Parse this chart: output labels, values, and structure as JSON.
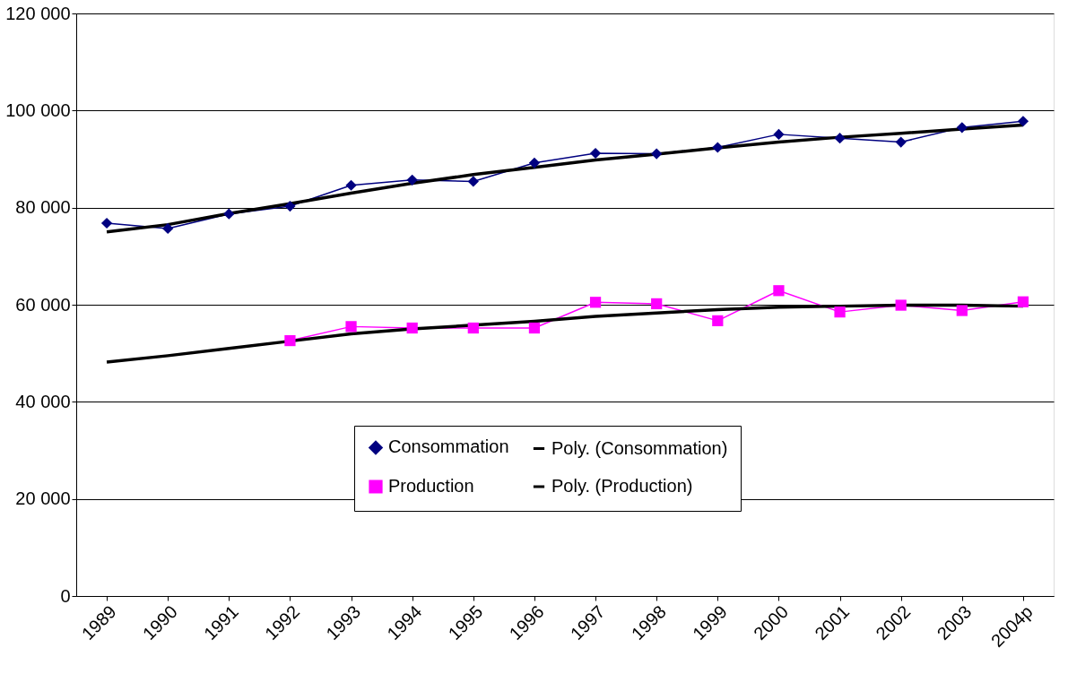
{
  "chart_data": {
    "type": "line",
    "categories": [
      "1989",
      "1990",
      "1991",
      "1992",
      "1993",
      "1994",
      "1995",
      "1996",
      "1997",
      "1998",
      "1999",
      "2000",
      "2001",
      "2002",
      "2003",
      "2004p"
    ],
    "series": [
      {
        "name": "Consommation",
        "color": "#000080",
        "marker": "diamond",
        "values": [
          76800,
          75700,
          78700,
          80300,
          84600,
          85700,
          85400,
          89200,
          91200,
          91100,
          92400,
          95100,
          94300,
          93500,
          96500,
          97800
        ]
      },
      {
        "name": "Production",
        "color": "#ff00ff",
        "marker": "square",
        "values": [
          null,
          null,
          null,
          52600,
          55500,
          55200,
          55200,
          55200,
          60500,
          60200,
          56700,
          62900,
          58500,
          59900,
          58800,
          60600
        ]
      },
      {
        "name": "Poly. (Consommation)",
        "color": "#000000",
        "marker": "none",
        "values": [
          75000,
          76500,
          78800,
          80800,
          83000,
          85000,
          86800,
          88300,
          89800,
          91000,
          92300,
          93500,
          94500,
          95300,
          96200,
          97000
        ]
      },
      {
        "name": "Poly. (Production)",
        "color": "#000000",
        "marker": "none",
        "values": [
          48200,
          49500,
          51000,
          52500,
          54000,
          55000,
          55800,
          56600,
          57600,
          58300,
          59000,
          59500,
          59700,
          59900,
          59900,
          59700
        ]
      }
    ],
    "ylim": [
      0,
      120000
    ],
    "yticks": [
      {
        "value": 0,
        "label": "0"
      },
      {
        "value": 20000,
        "label": "20 000"
      },
      {
        "value": 40000,
        "label": "40 000"
      },
      {
        "value": 60000,
        "label": "60 000"
      },
      {
        "value": 80000,
        "label": "80 000"
      },
      {
        "value": 100000,
        "label": "100 000"
      },
      {
        "value": 120000,
        "label": "120 000"
      }
    ],
    "grid": "y",
    "legend": "bottom right"
  }
}
